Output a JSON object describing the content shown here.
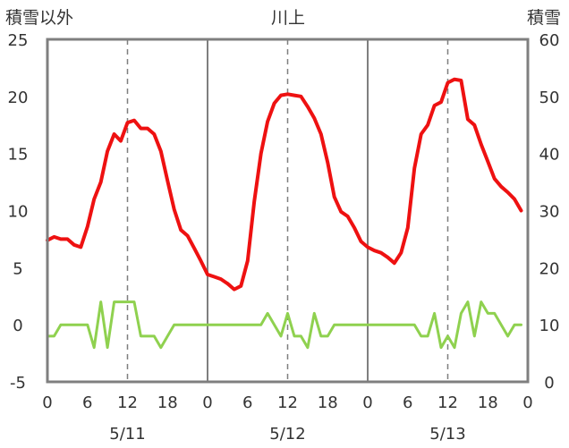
{
  "chart_data": {
    "type": "line",
    "title": "川上",
    "ylabel_left": "積雪以外",
    "ylabel_right": "積雪",
    "ylim_left": [
      -5,
      25
    ],
    "yticks_left": [
      "25",
      "20",
      "15",
      "10",
      "5",
      "0",
      "-5"
    ],
    "ylim_right": [
      0,
      60
    ],
    "yticks_right": [
      "60",
      "50",
      "40",
      "30",
      "20",
      "10",
      "0"
    ],
    "x_hours": [
      0,
      72
    ],
    "xtick_hours": [
      0,
      6,
      12,
      18,
      24,
      30,
      36,
      42,
      48,
      54,
      60,
      66,
      72
    ],
    "xtick_labels": [
      "0",
      "6",
      "12",
      "18",
      "0",
      "6",
      "12",
      "18",
      "0",
      "6",
      "12",
      "18",
      "0"
    ],
    "day_labels": [
      "5/11",
      "5/12",
      "5/13"
    ],
    "grid": "dashed vertical at 12h, solid vertical at day boundaries",
    "series": [
      {
        "color": "#ee1111",
        "axis": "left",
        "x": [
          0,
          1,
          2,
          3,
          4,
          5,
          6,
          7,
          8,
          9,
          10,
          11,
          12,
          13,
          14,
          15,
          16,
          17,
          18,
          19,
          20,
          21,
          22,
          23,
          24,
          25,
          26,
          27,
          28,
          29,
          30,
          31,
          32,
          33,
          34,
          35,
          36,
          37,
          38,
          39,
          40,
          41,
          42,
          43,
          44,
          45,
          46,
          47,
          48,
          49,
          50,
          51,
          52,
          53,
          54,
          55,
          56,
          57,
          58,
          59,
          60,
          61,
          62,
          63,
          64,
          65,
          66,
          67,
          68,
          69,
          70,
          71
        ],
        "values": [
          7.4,
          7.7,
          7.5,
          7.5,
          7.0,
          6.8,
          8.6,
          11.0,
          12.5,
          15.2,
          16.7,
          16.1,
          17.7,
          17.9,
          17.2,
          17.2,
          16.7,
          15.2,
          12.6,
          10.1,
          8.3,
          7.8,
          6.7,
          5.6,
          4.4,
          4.2,
          4.0,
          3.6,
          3.1,
          3.4,
          5.6,
          10.8,
          15.0,
          17.8,
          19.4,
          20.1,
          20.2,
          20.1,
          20.0,
          19.1,
          18.1,
          16.7,
          14.2,
          11.2,
          9.9,
          9.5,
          8.5,
          7.3,
          6.8,
          6.5,
          6.3,
          5.9,
          5.4,
          6.3,
          8.5,
          13.7,
          16.7,
          17.5,
          19.2,
          19.5,
          21.2,
          21.5,
          21.4,
          18.0,
          17.5,
          15.8,
          14.3,
          12.8,
          12.1,
          11.6,
          11.0,
          10.0
        ]
      },
      {
        "color": "#8fd14f",
        "axis": "left",
        "x": [
          0,
          1,
          2,
          3,
          4,
          5,
          6,
          7,
          8,
          9,
          10,
          11,
          12,
          13,
          14,
          15,
          16,
          17,
          18,
          19,
          20,
          21,
          22,
          23,
          24,
          25,
          26,
          27,
          28,
          29,
          30,
          31,
          32,
          33,
          34,
          35,
          36,
          37,
          38,
          39,
          40,
          41,
          42,
          43,
          44,
          45,
          46,
          47,
          48,
          49,
          50,
          51,
          52,
          53,
          54,
          55,
          56,
          57,
          58,
          59,
          60,
          61,
          62,
          63,
          64,
          65,
          66,
          67,
          68,
          69,
          70,
          71
        ],
        "values": [
          -1,
          -1,
          0,
          0,
          0,
          0,
          0,
          -2,
          2,
          -2,
          2,
          2,
          2,
          2,
          -1,
          -1,
          -1,
          -2,
          -1,
          0,
          0,
          0,
          0,
          0,
          0,
          0,
          0,
          0,
          0,
          0,
          0,
          0,
          0,
          1,
          0,
          -1,
          1,
          -1,
          -1,
          -2,
          1,
          -1,
          -1,
          0,
          0,
          0,
          0,
          0,
          0,
          0,
          0,
          0,
          0,
          0,
          0,
          0,
          -1,
          -1,
          1,
          -2,
          -1,
          -2,
          1,
          2,
          -1,
          2,
          1,
          1,
          0,
          -1,
          0,
          0
        ]
      },
      {
        "color": "#7030a0",
        "axis": "right",
        "x": [
          0,
          72
        ],
        "values": [
          0,
          0
        ]
      }
    ]
  }
}
